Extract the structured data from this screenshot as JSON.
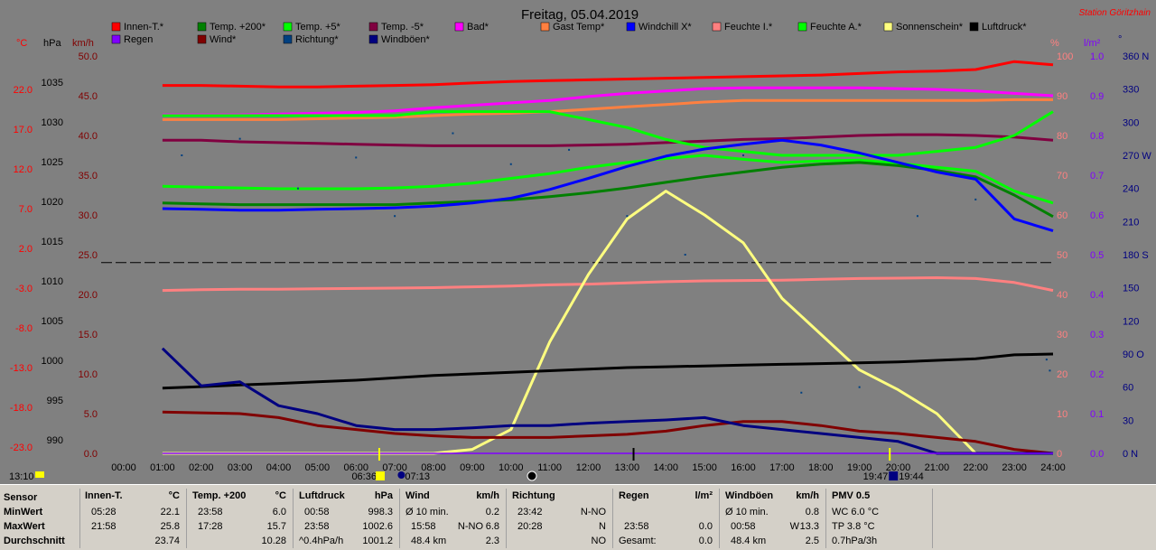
{
  "title": "Freitag, 05.04.2019",
  "station": "Station Göritzhain",
  "colors": {
    "innen": "#ff0000",
    "t200": "#008000",
    "t5": "#00ff00",
    "tm5": "#800040",
    "bad": "#ff00ff",
    "gast": "#ff8040",
    "windchill": "#0000ff",
    "feuchteI": "#ff8080",
    "feuchteA": "#00ff00",
    "sonne": "#ffff80",
    "luftdruck": "#000000",
    "regen": "#8000ff",
    "wind": "#800000",
    "richtung": "#004080",
    "boeen": "#000080"
  },
  "legend": [
    {
      "label": "Innen-T.*",
      "color": "#ff0000"
    },
    {
      "label": "Temp. +200*",
      "color": "#008000"
    },
    {
      "label": "Temp. +5*",
      "color": "#00ff00"
    },
    {
      "label": "Temp. -5*",
      "color": "#800040"
    },
    {
      "label": "Bad*",
      "color": "#ff00ff"
    },
    {
      "label": "Gast Temp*",
      "color": "#ff8040"
    },
    {
      "label": "Windchill X*",
      "color": "#0000ff"
    },
    {
      "label": "Feuchte I.*",
      "color": "#ff8080"
    },
    {
      "label": "Feuchte A.*",
      "color": "#00ff00"
    },
    {
      "label": "Sonnenschein*",
      "color": "#ffff80"
    },
    {
      "label": "Luftdruck*",
      "color": "#000000"
    },
    {
      "label": "Regen",
      "color": "#8000ff"
    },
    {
      "label": "Wind*",
      "color": "#800000"
    },
    {
      "label": "Richtung*",
      "color": "#004080"
    },
    {
      "label": "Windböen*",
      "color": "#000080"
    }
  ],
  "axes_units": {
    "temp": "°C",
    "hpa": "hPa",
    "kmh": "km/h",
    "pct": "%",
    "lm2": "l/m²",
    "dir": "°"
  },
  "axis_ticks": {
    "temp": [
      "22.0",
      "17.0",
      "12.0",
      "7.0",
      "2.0",
      "-3.0",
      "-8.0",
      "-13.0",
      "-18.0",
      "-23.0"
    ],
    "hpa": [
      "1035",
      "1030",
      "1025",
      "1020",
      "1015",
      "1010",
      "1005",
      "1000",
      "995",
      "990"
    ],
    "kmh": [
      "50.0",
      "45.0",
      "40.0",
      "35.0",
      "30.0",
      "25.0",
      "20.0",
      "15.0",
      "10.0",
      "5.0",
      "0.0"
    ],
    "pct": [
      "100",
      "90",
      "80",
      "70",
      "60",
      "50",
      "40",
      "30",
      "20",
      "10",
      "0"
    ],
    "lm2": [
      "1.0",
      "0.9",
      "0.8",
      "0.7",
      "0.6",
      "0.5",
      "0.4",
      "0.3",
      "0.2",
      "0.1",
      "0.0"
    ],
    "dir": [
      "360 N",
      "330",
      "300",
      "270 W",
      "240",
      "210",
      "180 S",
      "150",
      "120",
      "90 O",
      "60",
      "30",
      "0 N"
    ],
    "hours": [
      "00:00",
      "01:00",
      "02:00",
      "03:00",
      "04:00",
      "05:00",
      "06:00",
      "07:00",
      "08:00",
      "09:00",
      "10:00",
      "11:00",
      "12:00",
      "13:00",
      "14:00",
      "15:00",
      "16:00",
      "17:00",
      "18:00",
      "19:00",
      "20:00",
      "21:00",
      "22:00",
      "23:00",
      "24:00"
    ]
  },
  "markers": {
    "now": "13:10",
    "sunrise": "06:36",
    "dawn": "07:13",
    "sunset": "19:47",
    "dusk": "19:44"
  },
  "chart_data": {
    "type": "line",
    "title": "Freitag, 05.04.2019",
    "x": [
      "01:00",
      "02:00",
      "03:00",
      "04:00",
      "05:00",
      "06:00",
      "07:00",
      "08:00",
      "09:00",
      "10:00",
      "11:00",
      "12:00",
      "13:00",
      "14:00",
      "15:00",
      "16:00",
      "17:00",
      "18:00",
      "19:00",
      "20:00",
      "21:00",
      "22:00",
      "23:00",
      "24:00"
    ],
    "xlim": [
      "00:00",
      "24:00"
    ],
    "series": [
      {
        "name": "Innen-T.*",
        "axis": "kmh",
        "color": "#ff0000",
        "values": [
          46.3,
          46.3,
          46.2,
          46.1,
          46.1,
          46.2,
          46.3,
          46.4,
          46.6,
          46.8,
          46.9,
          47.0,
          47.1,
          47.2,
          47.3,
          47.4,
          47.5,
          47.6,
          47.8,
          48.0,
          48.1,
          48.3,
          49.3,
          48.9
        ]
      },
      {
        "name": "Bad*",
        "axis": "kmh",
        "color": "#ff00ff",
        "values": [
          42.6,
          42.6,
          42.6,
          42.7,
          42.8,
          42.9,
          43.1,
          43.5,
          43.8,
          44.1,
          44.4,
          44.9,
          45.3,
          45.6,
          45.9,
          46.0,
          46.0,
          46.0,
          46.0,
          45.9,
          45.8,
          45.6,
          45.3,
          45.0
        ]
      },
      {
        "name": "Gast Temp*",
        "axis": "kmh",
        "color": "#ff8040",
        "values": [
          42.0,
          42.0,
          42.0,
          42.0,
          42.1,
          42.2,
          42.3,
          42.5,
          42.7,
          42.8,
          43.0,
          43.3,
          43.6,
          43.9,
          44.2,
          44.4,
          44.4,
          44.4,
          44.4,
          44.4,
          44.4,
          44.4,
          44.5,
          44.5
        ]
      },
      {
        "name": "Temp. -5*",
        "axis": "kmh",
        "color": "#800040",
        "values": [
          39.4,
          39.4,
          39.2,
          39.1,
          39.0,
          38.9,
          38.8,
          38.7,
          38.7,
          38.7,
          38.7,
          38.8,
          38.9,
          39.1,
          39.3,
          39.5,
          39.6,
          39.8,
          40.0,
          40.1,
          40.1,
          40.0,
          39.8,
          39.4
        ]
      },
      {
        "name": "Temp. +5*",
        "axis": "kmh",
        "color": "#00ff00",
        "values": [
          33.6,
          33.5,
          33.4,
          33.3,
          33.3,
          33.3,
          33.4,
          33.6,
          34.0,
          34.6,
          35.2,
          36.0,
          36.6,
          37.1,
          37.5,
          37.0,
          36.6,
          36.8,
          36.9,
          36.5,
          36.0,
          35.5,
          33.0,
          31.5
        ]
      },
      {
        "name": "Feuchte A.*",
        "axis": "pct",
        "color": "#00ff00",
        "values": [
          85,
          85,
          85,
          85,
          85,
          85,
          85,
          86,
          86,
          86,
          86,
          84,
          82,
          79,
          77,
          76,
          75,
          75,
          75,
          75,
          76,
          77,
          80,
          86
        ]
      },
      {
        "name": "Temp. +200*",
        "axis": "kmh",
        "color": "#008000",
        "values": [
          31.5,
          31.4,
          31.3,
          31.3,
          31.3,
          31.3,
          31.3,
          31.5,
          31.7,
          31.9,
          32.3,
          32.8,
          33.4,
          34.1,
          34.8,
          35.4,
          36.0,
          36.4,
          36.6,
          36.2,
          35.6,
          34.8,
          32.5,
          29.8
        ]
      },
      {
        "name": "Windchill X*",
        "axis": "kmh",
        "color": "#0000ff",
        "values": [
          30.8,
          30.7,
          30.6,
          30.6,
          30.7,
          30.8,
          30.9,
          31.1,
          31.5,
          32.1,
          33.2,
          34.6,
          36.1,
          37.4,
          38.3,
          38.9,
          39.4,
          38.8,
          37.8,
          36.6,
          35.4,
          34.5,
          29.5,
          28.0
        ]
      },
      {
        "name": "Feuchte I.*",
        "axis": "pct",
        "color": "#ff8080",
        "values": [
          41.0,
          41.2,
          41.3,
          41.3,
          41.4,
          41.5,
          41.6,
          41.7,
          41.9,
          42.1,
          42.4,
          42.6,
          42.9,
          43.2,
          43.4,
          43.5,
          43.6,
          43.8,
          44.0,
          44.1,
          44.2,
          44.0,
          43.0,
          41.0
        ]
      },
      {
        "name": "Sonnenschein*",
        "axis": "pct",
        "color": "#ffff80",
        "values": [
          0,
          0,
          0,
          0,
          0,
          0,
          0,
          0,
          1,
          6,
          28,
          45,
          59,
          66,
          60,
          53,
          39,
          30,
          21,
          16,
          10,
          0,
          0,
          0
        ]
      },
      {
        "name": "Luftdruck*",
        "axis": "hpa",
        "color": "#000000",
        "values": [
          998.2,
          998.4,
          998.6,
          998.8,
          999.0,
          999.2,
          999.5,
          999.8,
          1000.0,
          1000.2,
          1000.4,
          1000.6,
          1000.8,
          1000.9,
          1001.0,
          1001.1,
          1001.2,
          1001.3,
          1001.4,
          1001.5,
          1001.7,
          1001.9,
          1002.4,
          1002.5
        ]
      },
      {
        "name": "Wind*",
        "axis": "kmh",
        "color": "#800000",
        "values": [
          5.2,
          5.1,
          5.0,
          4.5,
          3.5,
          3.0,
          2.5,
          2.2,
          2.0,
          2.0,
          2.0,
          2.2,
          2.4,
          2.8,
          3.5,
          4.0,
          4.0,
          3.5,
          2.8,
          2.5,
          2.0,
          1.5,
          0.5,
          0.0
        ]
      },
      {
        "name": "Windböen*",
        "axis": "kmh",
        "color": "#000080",
        "values": [
          13.2,
          8.5,
          9.0,
          6.0,
          5.0,
          3.5,
          3.0,
          3.0,
          3.2,
          3.5,
          3.5,
          3.8,
          4.0,
          4.2,
          4.5,
          3.5,
          3.0,
          2.5,
          2.0,
          1.5,
          0.0,
          0.0,
          0.0,
          0.0
        ]
      },
      {
        "name": "Regen",
        "axis": "lm2",
        "color": "#8000ff",
        "values": [
          0,
          0,
          0,
          0,
          0,
          0,
          0,
          0,
          0,
          0,
          0,
          0,
          0,
          0,
          0,
          0,
          0,
          0,
          0,
          0,
          0,
          0,
          0,
          0
        ]
      }
    ],
    "direction_points": {
      "axis": "dir",
      "x": [
        "01:30",
        "03:00",
        "04:30",
        "06:00",
        "07:00",
        "08:30",
        "10:00",
        "11:30",
        "13:00",
        "14:30",
        "16:00",
        "17:30",
        "19:00",
        "20:30",
        "22:00",
        "23:50",
        "23:55"
      ],
      "values": [
        270,
        285,
        240,
        268,
        215,
        290,
        262,
        275,
        215,
        180,
        270,
        55,
        60,
        215,
        230,
        85,
        75
      ]
    },
    "reference_line": {
      "axis": "kmh",
      "value": 24.0
    }
  },
  "summary": {
    "headers": {
      "sensor": "Sensor",
      "innen": "Innen-T.",
      "innen_u": "°C",
      "t200": "Temp. +200",
      "t200_u": "°C",
      "luft": "Luftdruck",
      "luft_u": "hPa",
      "wind": "Wind",
      "wind_u": "km/h",
      "richtung": "Richtung",
      "regen": "Regen",
      "regen_u": "l/m²",
      "boeen": "Windböen",
      "boeen_u": "km/h",
      "pmv": "PMV 0.5"
    },
    "labels": {
      "min": "MinWert",
      "max": "MaxWert",
      "avg": "Durchschnitt"
    },
    "innen": {
      "min_t": "05:28",
      "min_v": "22.1",
      "max_t": "21:58",
      "max_v": "25.8",
      "avg": "23.74"
    },
    "t200": {
      "min_t": "23:58",
      "min_v": "6.0",
      "max_t": "17:28",
      "max_v": "15.7",
      "avg": "10.28"
    },
    "luft": {
      "min_t": "00:58",
      "min_v": "998.3",
      "max_t": "23:58",
      "max_v": "1002.6",
      "trend": "^0.4hPa/h",
      "avg": "1001.2"
    },
    "wind": {
      "r1_t": "Ø 10 min.",
      "r1_v": "0.2",
      "r2_t": "15:58",
      "r2_d": "N-NO",
      "r2_v": "6.8",
      "r3_t": "48.4 km",
      "r3_v": "2.3"
    },
    "richtung": {
      "r1_t": "23:42",
      "r1_v": "N-NO",
      "r2_t": "20:28",
      "r2_v": "N",
      "r3_v": "NO"
    },
    "regen": {
      "r2_t": "23:58",
      "r2_v": "0.0",
      "r3_t": "Gesamt:",
      "r3_v": "0.0",
      "r1_v": ""
    },
    "boeen": {
      "r1_t": "Ø 10 min.",
      "r1_v": "0.8",
      "r2_t": "00:58",
      "r2_d": "W",
      "r2_v": "13.3",
      "r3_t": "48.4 km",
      "r3_v": "2.5"
    },
    "pmv": {
      "r1": "WC 6.0 °C",
      "r2": "TP 3.8 °C",
      "r3": "0.7hPa/3h"
    }
  }
}
